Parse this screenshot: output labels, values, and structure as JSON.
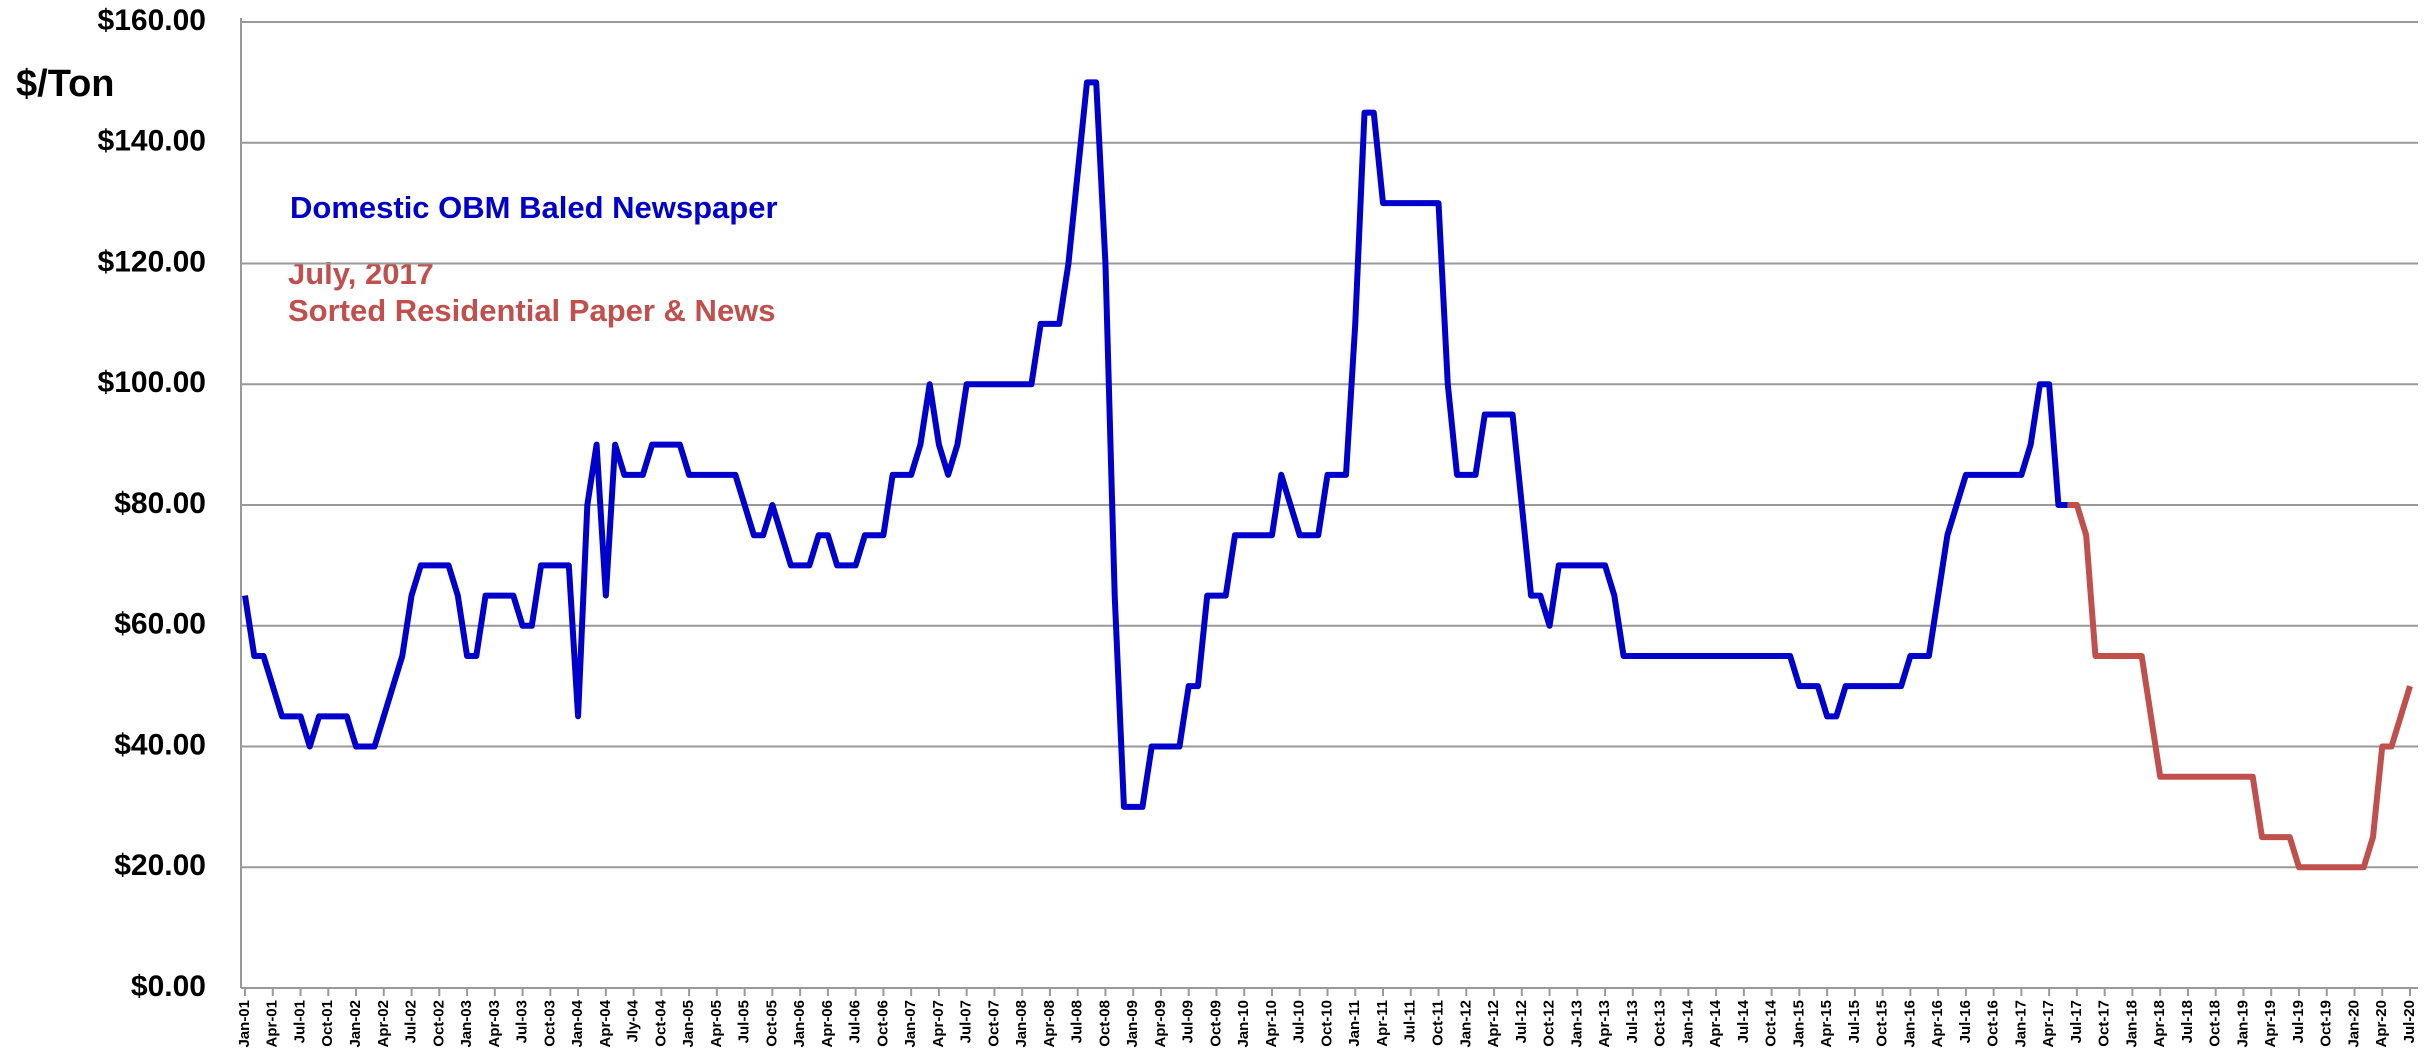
{
  "chart_data": {
    "type": "line",
    "ylabel": "$/Ton",
    "annotation": "July, 2017",
    "categories": [
      "Jan-01",
      null,
      null,
      "Apr-01",
      null,
      null,
      "Jul-01",
      null,
      null,
      "Oct-01",
      null,
      null,
      "Jan-02",
      null,
      null,
      "Apr-02",
      null,
      null,
      "Jul-02",
      null,
      null,
      "Oct-02",
      null,
      null,
      "Jan-03",
      null,
      null,
      "Apr-03",
      null,
      null,
      "Jul-03",
      null,
      null,
      "Oct-03",
      null,
      null,
      "Jan-04",
      null,
      null,
      "Apr-04",
      null,
      null,
      "Jly-04",
      null,
      null,
      "Oct-04",
      null,
      null,
      "Jan-05",
      null,
      null,
      "Apr-05",
      null,
      null,
      "Jul-05",
      null,
      null,
      "Oct-05",
      null,
      null,
      "Jan-06",
      null,
      null,
      "Apr-06",
      null,
      null,
      "Jul-06",
      null,
      null,
      "Oct-06",
      null,
      null,
      "Jan-07",
      null,
      null,
      "Apr-07",
      null,
      null,
      "Jul-07",
      null,
      null,
      "Oct-07",
      null,
      null,
      "Jan-08",
      null,
      null,
      "Apr-08",
      null,
      null,
      "Jul-08",
      null,
      null,
      "Oct-08",
      null,
      null,
      "Jan-09",
      null,
      null,
      "Apr-09",
      null,
      null,
      "Jul-09",
      null,
      null,
      "Oct-09",
      null,
      null,
      "Jan-10",
      null,
      null,
      "Apr-10",
      null,
      null,
      "Jul-10",
      null,
      null,
      "Oct-10",
      null,
      null,
      "Jan-11",
      null,
      null,
      "Apr-11",
      null,
      null,
      "Jul-11",
      null,
      null,
      "Oct-11",
      null,
      null,
      "Jan-12",
      null,
      null,
      "Apr-12",
      null,
      null,
      "Jul-12",
      null,
      null,
      "Oct-12",
      null,
      null,
      "Jan-13",
      null,
      null,
      "Apr-13",
      null,
      null,
      "Jul-13",
      null,
      null,
      "Oct-13",
      null,
      null,
      "Jan-14",
      null,
      null,
      "Apr-14",
      null,
      null,
      "Jul-14",
      null,
      null,
      "Oct-14",
      null,
      null,
      "Jan-15",
      null,
      null,
      "Apr-15",
      null,
      null,
      "Jul-15",
      null,
      null,
      "Oct-15",
      null,
      null,
      "Jan-16",
      null,
      null,
      "Apr-16",
      null,
      null,
      "Jul-16",
      null,
      null,
      "Oct-16",
      null,
      null,
      "Jan-17",
      null,
      null,
      "Apr-17",
      null,
      null,
      "Jul-17",
      null,
      null,
      "Oct-17",
      null,
      null,
      "Jan-18",
      null,
      null,
      "Apr-18",
      null,
      null,
      "Jul-18",
      null,
      null,
      "Oct-18",
      null,
      null,
      "Jan-19",
      null,
      null,
      "Apr-19",
      null,
      null,
      "Jul-19",
      null,
      null,
      "Oct-19",
      null,
      null,
      "Jan-20",
      null,
      null,
      "Apr-20",
      null,
      null,
      "Jul-20"
    ],
    "series": [
      {
        "name": "Domestic  OBM Baled Newspaper",
        "color": "#0000cc",
        "values": [
          65,
          55,
          55,
          50,
          45,
          45,
          45,
          40,
          45,
          45,
          45,
          45,
          40,
          40,
          40,
          45,
          50,
          55,
          65,
          70,
          70,
          70,
          70,
          65,
          55,
          55,
          65,
          65,
          65,
          65,
          60,
          60,
          70,
          70,
          70,
          70,
          45,
          80,
          90,
          65,
          90,
          85,
          85,
          85,
          90,
          90,
          90,
          90,
          85,
          85,
          85,
          85,
          85,
          85,
          80,
          75,
          75,
          80,
          75,
          70,
          70,
          70,
          75,
          75,
          70,
          70,
          70,
          75,
          75,
          75,
          85,
          85,
          85,
          90,
          100,
          90,
          85,
          90,
          100,
          100,
          100,
          100,
          100,
          100,
          100,
          100,
          110,
          110,
          110,
          120,
          135,
          150,
          150,
          120,
          65,
          30,
          30,
          30,
          40,
          40,
          40,
          40,
          50,
          50,
          65,
          65,
          65,
          75,
          75,
          75,
          75,
          75,
          85,
          80,
          75,
          75,
          75,
          85,
          85,
          85,
          110,
          145,
          145,
          130,
          130,
          130,
          130,
          130,
          130,
          130,
          100,
          85,
          85,
          85,
          95,
          95,
          95,
          95,
          80,
          65,
          65,
          60,
          70,
          70,
          70,
          70,
          70,
          70,
          65,
          55,
          55,
          55,
          55,
          55,
          55,
          55,
          55,
          55,
          55,
          55,
          55,
          55,
          55,
          55,
          55,
          55,
          55,
          55,
          50,
          50,
          50,
          45,
          45,
          50,
          50,
          50,
          50,
          50,
          50,
          50,
          55,
          55,
          55,
          65,
          75,
          80,
          85,
          85,
          85,
          85,
          85,
          85,
          85,
          90,
          100,
          100,
          80,
          80,
          null,
          null,
          null,
          null,
          null,
          null,
          null,
          null,
          null,
          null,
          null,
          null,
          null,
          null,
          null,
          null,
          null,
          null,
          null,
          null,
          null,
          null,
          null,
          null,
          null,
          null,
          null,
          null,
          null,
          null,
          null,
          null,
          null,
          null,
          null,
          null,
          null
        ]
      },
      {
        "name": "Sorted Residential Paper & News",
        "color": "#c0504d",
        "values": [
          null,
          null,
          null,
          null,
          null,
          null,
          null,
          null,
          null,
          null,
          null,
          null,
          null,
          null,
          null,
          null,
          null,
          null,
          null,
          null,
          null,
          null,
          null,
          null,
          null,
          null,
          null,
          null,
          null,
          null,
          null,
          null,
          null,
          null,
          null,
          null,
          null,
          null,
          null,
          null,
          null,
          null,
          null,
          null,
          null,
          null,
          null,
          null,
          null,
          null,
          null,
          null,
          null,
          null,
          null,
          null,
          null,
          null,
          null,
          null,
          null,
          null,
          null,
          null,
          null,
          null,
          null,
          null,
          null,
          null,
          null,
          null,
          null,
          null,
          null,
          null,
          null,
          null,
          null,
          null,
          null,
          null,
          null,
          null,
          null,
          null,
          null,
          null,
          null,
          null,
          null,
          null,
          null,
          null,
          null,
          null,
          null,
          null,
          null,
          null,
          null,
          null,
          null,
          null,
          null,
          null,
          null,
          null,
          null,
          null,
          null,
          null,
          null,
          null,
          null,
          null,
          null,
          null,
          null,
          null,
          null,
          null,
          null,
          null,
          null,
          null,
          null,
          null,
          null,
          null,
          null,
          null,
          null,
          null,
          null,
          null,
          null,
          null,
          null,
          null,
          null,
          null,
          null,
          null,
          null,
          null,
          null,
          null,
          null,
          null,
          null,
          null,
          null,
          null,
          null,
          null,
          null,
          null,
          null,
          null,
          null,
          null,
          null,
          null,
          null,
          null,
          null,
          null,
          null,
          null,
          null,
          null,
          null,
          null,
          null,
          null,
          null,
          null,
          null,
          null,
          null,
          null,
          null,
          null,
          null,
          null,
          null,
          null,
          null,
          null,
          null,
          null,
          null,
          null,
          null,
          null,
          null,
          80,
          80,
          75,
          55,
          55,
          55,
          55,
          55,
          55,
          45,
          35,
          35,
          35,
          35,
          35,
          35,
          35,
          35,
          35,
          35,
          35,
          25,
          25,
          25,
          25,
          20,
          20,
          20,
          20,
          20,
          20,
          20,
          20,
          25,
          40,
          40,
          45,
          50
        ]
      }
    ],
    "ylim": [
      0,
      160
    ],
    "yticks": [
      {
        "value": 0,
        "label": "$0.00"
      },
      {
        "value": 20,
        "label": "$20.00"
      },
      {
        "value": 40,
        "label": "$40.00"
      },
      {
        "value": 60,
        "label": "$60.00"
      },
      {
        "value": 80,
        "label": "$80.00"
      },
      {
        "value": 100,
        "label": "$100.00"
      },
      {
        "value": 120,
        "label": "$120.00"
      },
      {
        "value": 140,
        "label": "$140.00"
      },
      {
        "value": 160,
        "label": "$160.00"
      }
    ],
    "grid": true
  }
}
